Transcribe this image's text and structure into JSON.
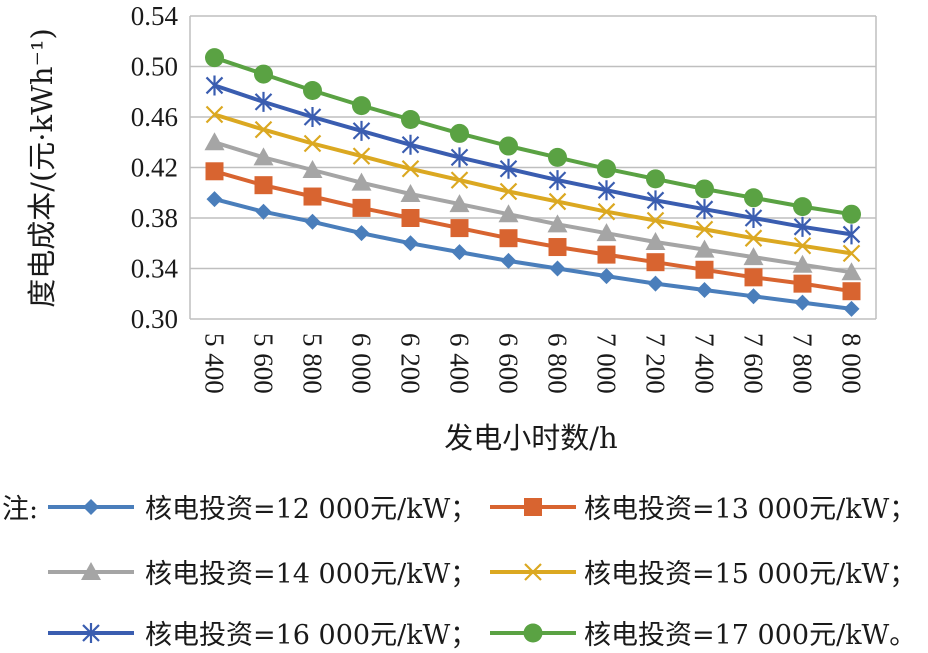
{
  "chart_data": {
    "type": "line",
    "xlabel": "发电小时数/h",
    "ylabel": "度电成本/(元·kWh⁻¹)",
    "ylim": [
      0.3,
      0.54
    ],
    "y_ticks": [
      "0.30",
      "0.34",
      "0.38",
      "0.42",
      "0.46",
      "0.50",
      "0.54"
    ],
    "grid": true,
    "categories": [
      "5 400",
      "5 600",
      "5 800",
      "6 000",
      "6 200",
      "6 400",
      "6 600",
      "6 800",
      "7 000",
      "7 200",
      "7 400",
      "7 600",
      "7 800",
      "8 000"
    ],
    "legend_prefix": "注:",
    "series": [
      {
        "name": "核电投资=12 000元/kW；",
        "color": "#4a7ebb",
        "marker": "diamond",
        "values": [
          0.395,
          0.385,
          0.377,
          0.368,
          0.36,
          0.353,
          0.346,
          0.34,
          0.334,
          0.328,
          0.323,
          0.318,
          0.313,
          0.308
        ]
      },
      {
        "name": "核电投资=13 000元/kW；",
        "color": "#d86430",
        "marker": "square",
        "values": [
          0.417,
          0.406,
          0.397,
          0.388,
          0.38,
          0.372,
          0.364,
          0.357,
          0.351,
          0.345,
          0.339,
          0.333,
          0.328,
          0.322
        ]
      },
      {
        "name": "核电投资=14 000元/kW；",
        "color": "#a5a5a5",
        "marker": "triangle",
        "values": [
          0.44,
          0.428,
          0.418,
          0.408,
          0.399,
          0.391,
          0.383,
          0.375,
          0.368,
          0.361,
          0.355,
          0.349,
          0.343,
          0.337
        ]
      },
      {
        "name": "核电投资=15 000元/kW；",
        "color": "#dba821",
        "marker": "x",
        "values": [
          0.462,
          0.45,
          0.439,
          0.429,
          0.419,
          0.41,
          0.401,
          0.393,
          0.385,
          0.378,
          0.371,
          0.364,
          0.358,
          0.352
        ]
      },
      {
        "name": "核电投资=16 000元/kW；",
        "color": "#3a5db0",
        "marker": "star",
        "values": [
          0.485,
          0.472,
          0.46,
          0.449,
          0.438,
          0.428,
          0.419,
          0.41,
          0.402,
          0.394,
          0.387,
          0.38,
          0.373,
          0.367
        ]
      },
      {
        "name": "核电投资=17 000元/kW。",
        "color": "#5aa243",
        "marker": "circle",
        "values": [
          0.507,
          0.494,
          0.481,
          0.469,
          0.458,
          0.447,
          0.437,
          0.428,
          0.419,
          0.411,
          0.403,
          0.396,
          0.389,
          0.383
        ]
      }
    ]
  }
}
